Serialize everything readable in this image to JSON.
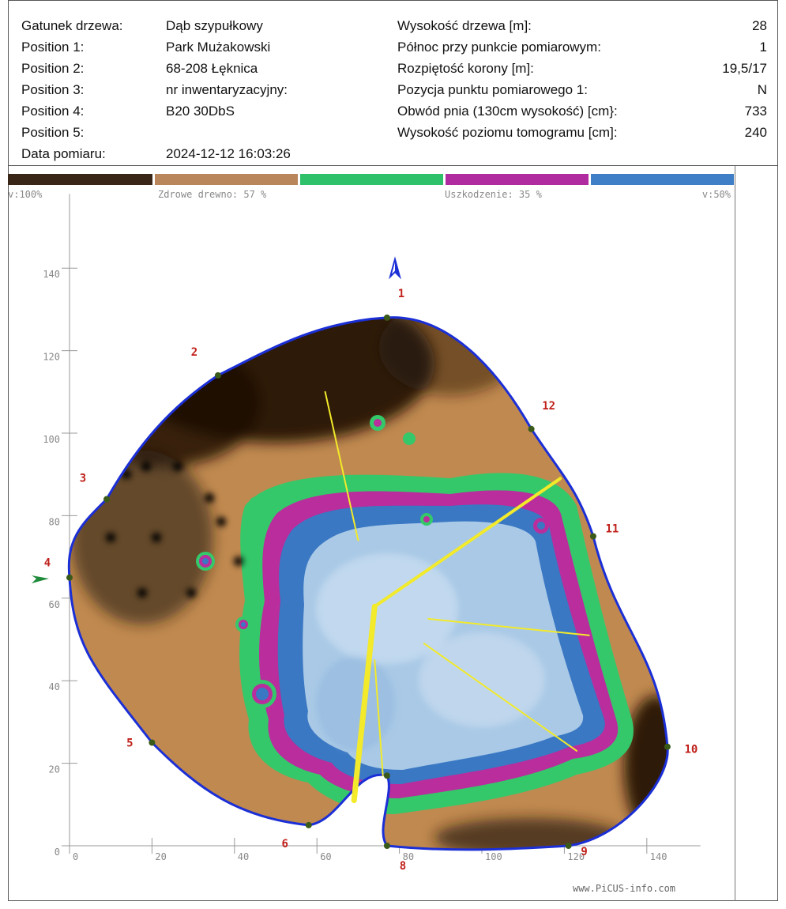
{
  "header": {
    "left": [
      {
        "label": "Gatunek drzewa:",
        "value": "Dąb szypułkowy"
      },
      {
        "label": "Position 1:",
        "value": "Park Mużakowski"
      },
      {
        "label": "Position 2:",
        "value": "68-208 Łęknica"
      },
      {
        "label": "Position 3:",
        "value": "nr inwentaryzacyjny:"
      },
      {
        "label": "Position 4:",
        "value": "B20 30DbS"
      },
      {
        "label": "Position 5:",
        "value": ""
      },
      {
        "label": "Data pomiaru:",
        "value": "2024-12-12 16:03:26"
      }
    ],
    "right": [
      {
        "label": "Wysokość drzewa [m]:",
        "value": "28"
      },
      {
        "label": "Północ przy punkcie pomiarowym:",
        "value": "1"
      },
      {
        "label": "Rozpiętość korony [m]:",
        "value": "19,5/17"
      },
      {
        "label": "Pozycja punktu pomiarowego 1:",
        "value": "N"
      },
      {
        "label": "Obwód pnia (130cm wysokość) [cm}:",
        "value": "733"
      },
      {
        "label": "Wysokość poziomu tomogramu [cm]:",
        "value": "240"
      }
    ]
  },
  "legend": {
    "colors": [
      "#3a2616",
      "#b8865a",
      "#2fc06a",
      "#b02aa0",
      "#3f7fc8"
    ],
    "left_label": "v:100%",
    "healthy_label": "Zdrowe drewno: 57 %",
    "damage_label": "Uszkodzenie: 35 %",
    "right_label": "v:50%"
  },
  "watermark": "www.PiCUS-info.com",
  "chart_data": {
    "type": "tomogram",
    "title": "",
    "xlim": [
      0,
      150
    ],
    "ylim": [
      0,
      150
    ],
    "x_ticks": [
      0,
      20,
      40,
      60,
      80,
      100,
      120,
      140
    ],
    "y_ticks": [
      0,
      20,
      40,
      60,
      80,
      100,
      120,
      140
    ],
    "healthy_wood_percent": 57,
    "damage_percent": 35,
    "measurement_points": [
      {
        "id": "1",
        "x": 77,
        "y": 128
      },
      {
        "id": "2",
        "x": 36,
        "y": 114
      },
      {
        "id": "3",
        "x": 9,
        "y": 84
      },
      {
        "id": "4",
        "x": 0,
        "y": 65
      },
      {
        "id": "5",
        "x": 20,
        "y": 25
      },
      {
        "id": "6",
        "x": 58,
        "y": 5
      },
      {
        "id": "7",
        "x": 77,
        "y": 17
      },
      {
        "id": "8",
        "x": 77,
        "y": 0
      },
      {
        "id": "9",
        "x": 121,
        "y": 0
      },
      {
        "id": "10",
        "x": 145,
        "y": 24
      },
      {
        "id": "11",
        "x": 127,
        "y": 75
      },
      {
        "id": "12",
        "x": 112,
        "y": 101
      }
    ],
    "north_marker_point": "1",
    "start_marker_point": "4"
  }
}
